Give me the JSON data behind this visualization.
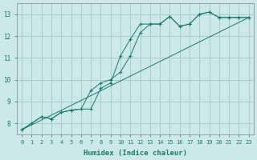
{
  "background_color": "#cce8e8",
  "grid_color": "#aacccc",
  "line_color": "#1a7a6a",
  "xlabel": "Humidex (Indice chaleur)",
  "xlim": [
    -0.5,
    23.5
  ],
  "ylim": [
    7.5,
    13.5
  ],
  "yticks": [
    8,
    9,
    10,
    11,
    12,
    13
  ],
  "xticks": [
    0,
    1,
    2,
    3,
    4,
    5,
    6,
    7,
    8,
    9,
    10,
    11,
    12,
    13,
    14,
    15,
    16,
    17,
    18,
    19,
    20,
    21,
    22,
    23
  ],
  "line1_x": [
    0,
    1,
    2,
    3,
    4,
    5,
    6,
    7,
    8,
    9,
    10,
    11,
    12,
    13,
    14,
    15,
    16,
    17,
    18,
    19,
    20,
    21,
    22,
    23
  ],
  "line1_y": [
    7.7,
    8.0,
    8.3,
    8.2,
    8.5,
    8.6,
    8.65,
    8.65,
    9.6,
    9.85,
    11.1,
    11.85,
    12.55,
    12.55,
    12.55,
    12.9,
    12.45,
    12.55,
    13.0,
    13.1,
    12.85,
    12.85,
    12.85,
    12.85
  ],
  "line2_x": [
    0,
    2,
    3,
    4,
    5,
    6,
    7,
    8,
    9,
    10,
    11,
    12,
    13,
    14,
    15,
    16,
    17,
    18,
    19,
    20,
    21,
    22,
    23
  ],
  "line2_y": [
    7.7,
    8.3,
    8.2,
    8.5,
    8.6,
    8.65,
    9.5,
    9.85,
    10.0,
    10.35,
    11.1,
    12.15,
    12.55,
    12.55,
    12.9,
    12.45,
    12.55,
    13.0,
    13.1,
    12.85,
    12.85,
    12.85,
    12.85
  ],
  "line3_x": [
    0,
    23
  ],
  "line3_y": [
    7.7,
    12.85
  ]
}
